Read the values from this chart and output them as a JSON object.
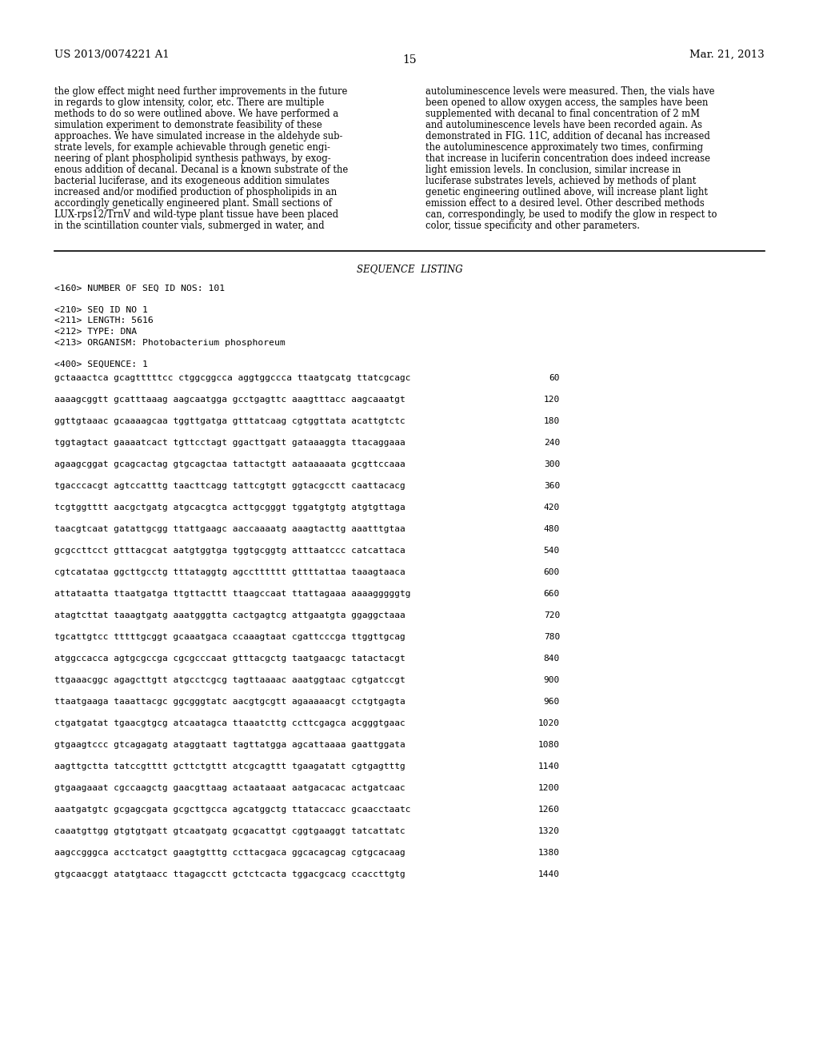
{
  "header_left": "US 2013/0074221 A1",
  "header_right": "Mar. 21, 2013",
  "page_number": "15",
  "bg_color": "#ffffff",
  "text_color": "#000000",
  "left_col_text": [
    "the glow effect might need further improvements in the future",
    "in regards to glow intensity, color, etc. There are multiple",
    "methods to do so were outlined above. We have performed a",
    "simulation experiment to demonstrate feasibility of these",
    "approaches. We have simulated increase in the aldehyde sub-",
    "strate levels, for example achievable through genetic engi-",
    "neering of plant phospholipid synthesis pathways, by exog-",
    "enous addition of decanal. Decanal is a known substrate of the",
    "bacterial luciferase, and its exogeneous addition simulates",
    "increased and/or modified production of phospholipids in an",
    "accordingly genetically engineered plant. Small sections of",
    "LUX-rps12/TrnV and wild-type plant tissue have been placed",
    "in the scintillation counter vials, submerged in water, and"
  ],
  "right_col_text": [
    "autoluminescence levels were measured. Then, the vials have",
    "been opened to allow oxygen access, the samples have been",
    "supplemented with decanal to final concentration of 2 mM",
    "and autoluminescence levels have been recorded again. As",
    "demonstrated in FIG. 11C, addition of decanal has increased",
    "the autoluminescence approximately two times, confirming",
    "that increase in luciferin concentration does indeed increase",
    "light emission levels. In conclusion, similar increase in",
    "luciferase substrates levels, achieved by methods of plant",
    "genetic engineering outlined above, will increase plant light",
    "emission effect to a desired level. Other described methods",
    "can, correspondingly, be used to modify the glow in respect to",
    "color, tissue specificity and other parameters."
  ],
  "sequence_listing_title": "SEQUENCE  LISTING",
  "seq_metadata": [
    "<160> NUMBER OF SEQ ID NOS: 101",
    "",
    "<210> SEQ ID NO 1",
    "<211> LENGTH: 5616",
    "<212> TYPE: DNA",
    "<213> ORGANISM: Photobacterium phosphoreum",
    "",
    "<400> SEQUENCE: 1"
  ],
  "sequence_lines": [
    [
      "gctaaactca gcagtttttcc ctggcggcca aggtggccca ttaatgcatg ttatcgcagc",
      "60"
    ],
    [
      "aaaagcggtt gcatttaaag aagcaatgga gcctgagttc aaagtttacc aagcaaatgt",
      "120"
    ],
    [
      "ggttgtaaac gcaaaagcaa tggttgatga gtttatcaag cgtggttata acattgtctc",
      "180"
    ],
    [
      "tggtagtact gaaaatcact tgttcctagt ggacttgatt gataaaggta ttacaggaaa",
      "240"
    ],
    [
      "agaagcggat gcagcactag gtgcagctaa tattactgtt aataaaaata gcgttccaaa",
      "300"
    ],
    [
      "tgacccacgt agtccatttg taacttcagg tattcgtgtt ggtacgcctt caattacacg",
      "360"
    ],
    [
      "tcgtggtttt aacgctgatg atgcacgtca acttgcgggt tggatgtgtg atgtgttaga",
      "420"
    ],
    [
      "taacgtcaat gatattgcgg ttattgaagc aaccaaaatg aaagtacttg aaatttgtaa",
      "480"
    ],
    [
      "gcgccttcct gtttacgcat aatgtggtga tggtgcggtg atttaatccc catcattaca",
      "540"
    ],
    [
      "cgtcatataa ggcttgcctg tttataggtg agcctttttt gttttattaa taaagtaaca",
      "600"
    ],
    [
      "attataatta ttaatgatga ttgttacttt ttaagccaat ttattagaaa aaaagggggtg",
      "660"
    ],
    [
      "atagtcttat taaagtgatg aaatgggtta cactgagtcg attgaatgta ggaggctaaa",
      "720"
    ],
    [
      "tgcattgtcc tttttgcggt gcaaatgaca ccaaagtaat cgattcccga ttggttgcag",
      "780"
    ],
    [
      "atggccacca agtgcgccga cgcgcccaat gtttacgctg taatgaacgc tatactacgt",
      "840"
    ],
    [
      "ttgaaacggc agagcttgtt atgcctcgcg tagttaaaac aaatggtaac cgtgatccgt",
      "900"
    ],
    [
      "ttaatgaaga taaattacgc ggcgggtatc aacgtgcgtt agaaaaacgt cctgtgagta",
      "960"
    ],
    [
      "ctgatgatat tgaacgtgcg atcaatagca ttaaatcttg ccttcgagca acgggtgaac",
      "1020"
    ],
    [
      "gtgaagtccc gtcagagatg ataggtaatt tagttatgga agcattaaaa gaattggata",
      "1080"
    ],
    [
      "aagttgctta tatccgtttt gcttctgttt atcgcagttt tgaagatatt cgtgagtttg",
      "1140"
    ],
    [
      "gtgaagaaat cgccaagctg gaacgttaag actaataaat aatgacacac actgatcaac",
      "1200"
    ],
    [
      "aaatgatgtc gcgagcgata gcgcttgcca agcatggctg ttataccacc gcaacctaatc",
      "1260"
    ],
    [
      "caaatgttgg gtgtgtgatt gtcaatgatg gcgacattgt cggtgaaggt tatcattatc",
      "1320"
    ],
    [
      "aagccgggca acctcatgct gaagtgtttg ccttacgaca ggcacagcag cgtgcacaag",
      "1380"
    ],
    [
      "gtgcaacggt atatgtaacc ttagagcctt gctctcacta tggacgcacg ccaccttgtg",
      "1440"
    ]
  ]
}
